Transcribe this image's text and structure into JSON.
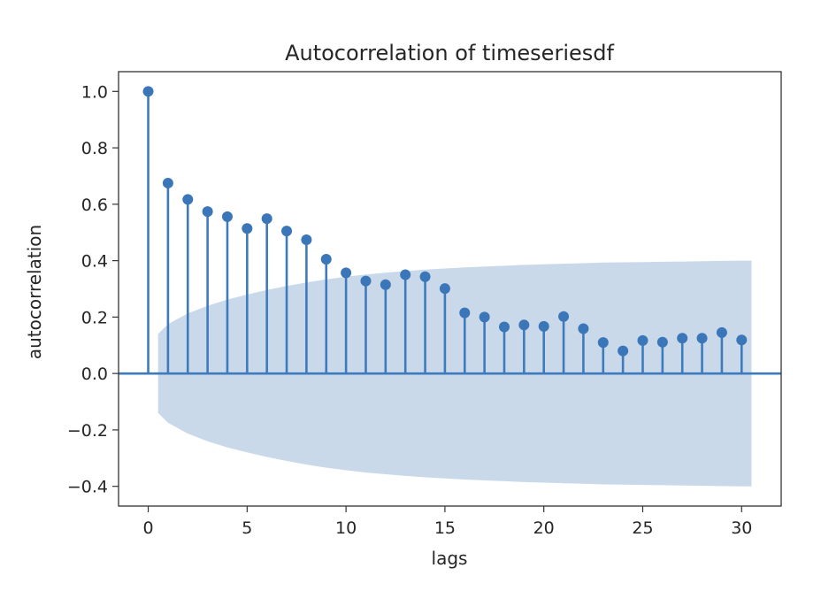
{
  "chart_data": {
    "type": "stem",
    "title": "Autocorrelation of timeseriesdf",
    "xlabel": "lags",
    "ylabel": "autocorrelation",
    "xlim": [
      -1.5,
      32
    ],
    "ylim": [
      -0.47,
      1.07
    ],
    "xticks": [
      0,
      5,
      10,
      15,
      20,
      25,
      30
    ],
    "yticks": [
      1.0,
      0.8,
      0.6,
      0.4,
      0.2,
      0.0,
      -0.2,
      -0.4
    ],
    "ytick_labels": [
      "1.0",
      "0.8",
      "0.6",
      "0.4",
      "0.2",
      "0.0",
      "−0.2",
      "−0.4"
    ],
    "grid": false,
    "series": [
      {
        "x": [
          0,
          1,
          2,
          3,
          4,
          5,
          6,
          7,
          8,
          9,
          10,
          11,
          12,
          13,
          14,
          15,
          16,
          17,
          18,
          19,
          20,
          21,
          22,
          23,
          24,
          25,
          26,
          27,
          28,
          29,
          30
        ],
        "values": [
          1.0,
          0.675,
          0.617,
          0.574,
          0.556,
          0.514,
          0.549,
          0.505,
          0.474,
          0.405,
          0.357,
          0.328,
          0.315,
          0.35,
          0.343,
          0.301,
          0.215,
          0.2,
          0.165,
          0.172,
          0.167,
          0.202,
          0.159,
          0.11,
          0.08,
          0.117,
          0.111,
          0.125,
          0.125,
          0.145,
          0.119
        ]
      }
    ],
    "confidence_band": {
      "x": [
        0.5,
        1,
        2,
        3,
        4,
        5,
        6,
        7,
        8,
        9,
        10,
        11,
        12,
        13,
        14,
        15,
        16,
        17,
        18,
        19,
        20,
        21,
        22,
        23,
        24,
        25,
        26,
        27,
        28,
        29,
        30,
        30.5
      ],
      "upper": [
        0.14,
        0.175,
        0.213,
        0.24,
        0.262,
        0.28,
        0.296,
        0.31,
        0.323,
        0.334,
        0.343,
        0.351,
        0.357,
        0.363,
        0.368,
        0.372,
        0.376,
        0.379,
        0.382,
        0.385,
        0.387,
        0.389,
        0.391,
        0.393,
        0.394,
        0.395,
        0.396,
        0.397,
        0.398,
        0.399,
        0.4,
        0.4
      ]
    },
    "colors": {
      "stem": "#3e7bbd",
      "marker": "#3a76b8",
      "band": "#c9d9ea",
      "zero_line": "#3e7bbd",
      "axes": "#333333"
    }
  }
}
